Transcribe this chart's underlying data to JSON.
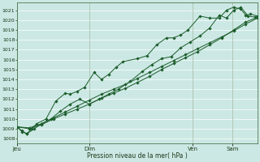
{
  "xlabel": "Pression niveau de la mer( hPa )",
  "bg_color": "#cce8e4",
  "grid_color": "#ffffff",
  "line_color": "#1a5c2a",
  "marker_color": "#1a5c2a",
  "ylim": [
    1007.5,
    1021.8
  ],
  "yticks": [
    1008,
    1009,
    1010,
    1011,
    1012,
    1013,
    1014,
    1015,
    1016,
    1017,
    1018,
    1019,
    1020,
    1021
  ],
  "xtick_labels": [
    "Jeu",
    "Dim",
    "Ven",
    "Sam"
  ],
  "xtick_positions": [
    0.0,
    0.3,
    0.73,
    0.895
  ],
  "series1_x": [
    0.0,
    0.02,
    0.04,
    0.06,
    0.08,
    0.12,
    0.16,
    0.2,
    0.22,
    0.25,
    0.28,
    0.32,
    0.35,
    0.38,
    0.41,
    0.44,
    0.5,
    0.54,
    0.58,
    0.62,
    0.65,
    0.68,
    0.71,
    0.76,
    0.8,
    0.84,
    0.87,
    0.9,
    0.93,
    0.95,
    0.97,
    1.0
  ],
  "series1_y": [
    1009.2,
    1008.7,
    1008.5,
    1009.0,
    1009.5,
    1010.0,
    1011.8,
    1012.6,
    1012.5,
    1012.8,
    1013.2,
    1014.7,
    1014.0,
    1014.5,
    1015.2,
    1015.8,
    1016.1,
    1016.4,
    1017.5,
    1018.2,
    1018.2,
    1018.5,
    1019.0,
    1020.4,
    1020.2,
    1020.2,
    1021.0,
    1021.3,
    1021.1,
    1020.5,
    1020.6,
    1020.4
  ],
  "series2_x": [
    0.0,
    0.02,
    0.04,
    0.07,
    0.1,
    0.14,
    0.18,
    0.22,
    0.26,
    0.3,
    0.34,
    0.38,
    0.42,
    0.47,
    0.52,
    0.56,
    0.6,
    0.64,
    0.68,
    0.72,
    0.76,
    0.8,
    0.84,
    0.87,
    0.9,
    0.93,
    0.96,
    0.99
  ],
  "series2_y": [
    1009.2,
    1008.8,
    1008.5,
    1009.0,
    1009.5,
    1010.0,
    1010.8,
    1011.5,
    1012.0,
    1011.5,
    1012.0,
    1012.5,
    1013.0,
    1013.8,
    1014.8,
    1015.5,
    1016.1,
    1016.3,
    1017.2,
    1017.8,
    1018.4,
    1019.2,
    1020.5,
    1020.2,
    1021.0,
    1021.3,
    1020.4,
    1020.3
  ],
  "series3_x": [
    0.0,
    0.05,
    0.1,
    0.15,
    0.2,
    0.25,
    0.3,
    0.35,
    0.4,
    0.45,
    0.5,
    0.55,
    0.6,
    0.65,
    0.7,
    0.75,
    0.8,
    0.85,
    0.9,
    0.95,
    1.0
  ],
  "series3_y": [
    1009.2,
    1009.0,
    1009.4,
    1010.0,
    1010.5,
    1011.0,
    1011.5,
    1012.1,
    1012.6,
    1013.1,
    1013.7,
    1014.3,
    1015.0,
    1015.6,
    1016.2,
    1016.8,
    1017.5,
    1018.2,
    1019.0,
    1019.8,
    1020.3
  ],
  "series4_x": [
    0.0,
    0.05,
    0.1,
    0.15,
    0.2,
    0.25,
    0.3,
    0.35,
    0.4,
    0.45,
    0.5,
    0.55,
    0.6,
    0.65,
    0.7,
    0.75,
    0.8,
    0.85,
    0.9,
    0.95,
    1.0
  ],
  "series4_y": [
    1009.2,
    1009.1,
    1009.5,
    1010.1,
    1010.7,
    1011.3,
    1011.9,
    1012.5,
    1013.0,
    1013.5,
    1014.1,
    1014.7,
    1015.3,
    1015.9,
    1016.5,
    1017.1,
    1017.7,
    1018.3,
    1018.9,
    1019.6,
    1020.2
  ]
}
